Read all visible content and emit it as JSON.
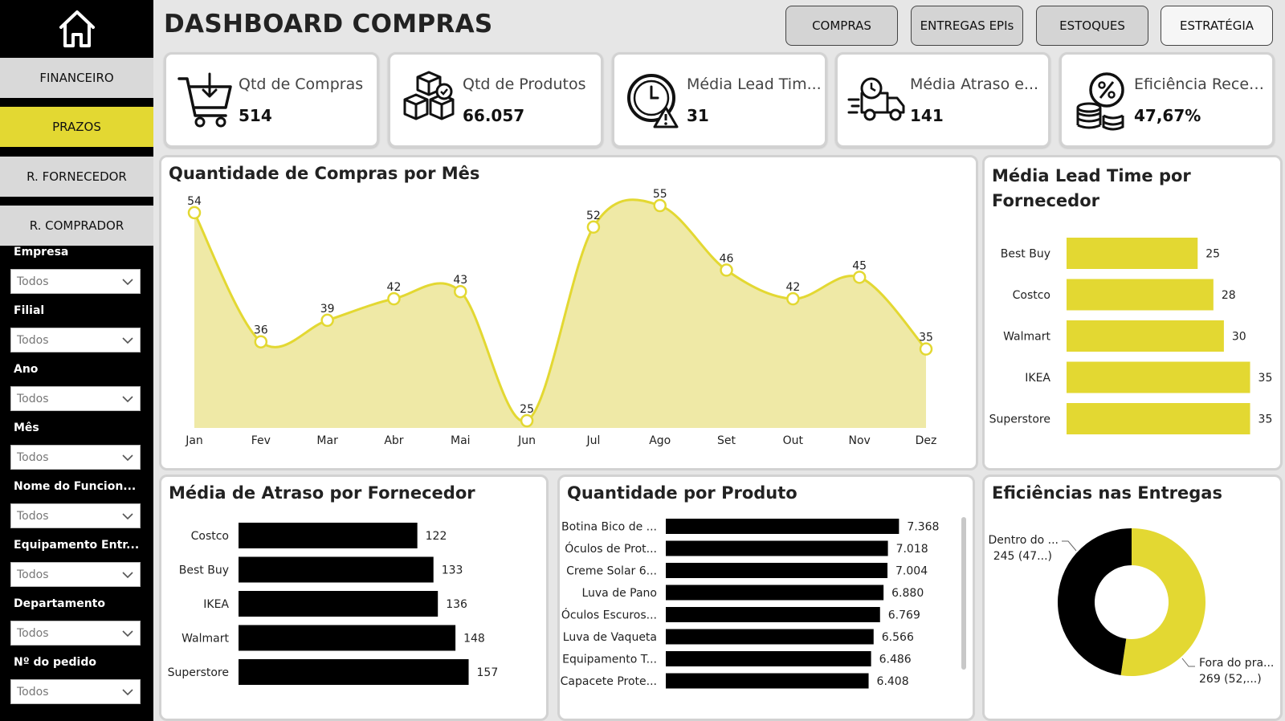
{
  "sidebar": {
    "home_icon": "home-icon",
    "nav": [
      "FINANCEIRO",
      "PRAZOS",
      "R. FORNECEDOR",
      "R. COMPRADOR"
    ],
    "active_nav": "PRAZOS",
    "filters": [
      {
        "label": "Empresa",
        "value": "Todos"
      },
      {
        "label": "Filial",
        "value": "Todos"
      },
      {
        "label": "Ano",
        "value": "Todos"
      },
      {
        "label": "Mês",
        "value": "Todos"
      },
      {
        "label": "Nome do Funcion...",
        "value": "Todos"
      },
      {
        "label": "Equipamento Entr...",
        "value": "Todos"
      },
      {
        "label": "Departamento",
        "value": "Todos"
      },
      {
        "label": "Nº do pedido",
        "value": "Todos"
      }
    ]
  },
  "header": {
    "title": "DASHBOARD COMPRAS",
    "buttons": [
      "COMPRAS",
      "ENTREGAS EPIs",
      "ESTOQUES",
      "ESTRATÉGIA"
    ]
  },
  "kpis": [
    {
      "label": "Qtd de Compras",
      "value": "514",
      "icon": "shopping-cart-icon"
    },
    {
      "label": "Qtd de Produtos",
      "value": "66.057",
      "icon": "boxes-icon"
    },
    {
      "label": "Média Lead Tim...",
      "value": "31",
      "icon": "clock-alert-icon"
    },
    {
      "label": "Média Atraso e...",
      "value": "141",
      "icon": "delivery-truck-icon"
    },
    {
      "label": "Eficiência Recebi...",
      "value": "47,67%",
      "icon": "percent-coins-icon"
    }
  ],
  "colors": {
    "accent": "#e3d832",
    "area_fill": "#efe9a6",
    "bar_dark": "#000000",
    "sidebar": "#000000"
  },
  "chart_data": [
    {
      "type": "area",
      "title": "Quantidade de Compras por Mês",
      "categories": [
        "Jan",
        "Fev",
        "Mar",
        "Abr",
        "Mai",
        "Jun",
        "Jul",
        "Ago",
        "Set",
        "Out",
        "Nov",
        "Dez"
      ],
      "values": [
        54,
        36,
        39,
        42,
        43,
        25,
        52,
        55,
        46,
        42,
        45,
        35
      ]
    },
    {
      "type": "bar",
      "title": "Média Lead Time por Fornecedor",
      "categories": [
        "Best Buy",
        "Costco",
        "Walmart",
        "IKEA",
        "Superstore"
      ],
      "values": [
        25,
        28,
        30,
        35,
        35
      ]
    },
    {
      "type": "bar",
      "title": "Média de Atraso por Fornecedor",
      "categories": [
        "Costco",
        "Best Buy",
        "IKEA",
        "Walmart",
        "Superstore"
      ],
      "values": [
        122,
        133,
        136,
        148,
        157
      ]
    },
    {
      "type": "bar",
      "title": "Quantidade por Produto",
      "categories": [
        "Botina Bico de ...",
        "Óculos de Prot...",
        "Creme Solar 6...",
        "Luva de Pano",
        "Óculos Escuros...",
        "Luva de Vaqueta",
        "Equipamento T...",
        "Capacete Prote..."
      ],
      "values": [
        7368,
        7018,
        7004,
        6880,
        6769,
        6566,
        6486,
        6408
      ],
      "value_labels": [
        "7.368",
        "7.018",
        "7.004",
        "6.880",
        "6.769",
        "6.566",
        "6.486",
        "6.408"
      ]
    },
    {
      "type": "pie",
      "title": "Eficiências nas Entregas",
      "slices": [
        {
          "label": "Dentro do ...",
          "value": 245,
          "detail": "245 (47...)",
          "color": "#000000"
        },
        {
          "label": "Fora do pra...",
          "value": 269,
          "detail": "269 (52,...)",
          "color": "#e3d832"
        }
      ]
    }
  ]
}
